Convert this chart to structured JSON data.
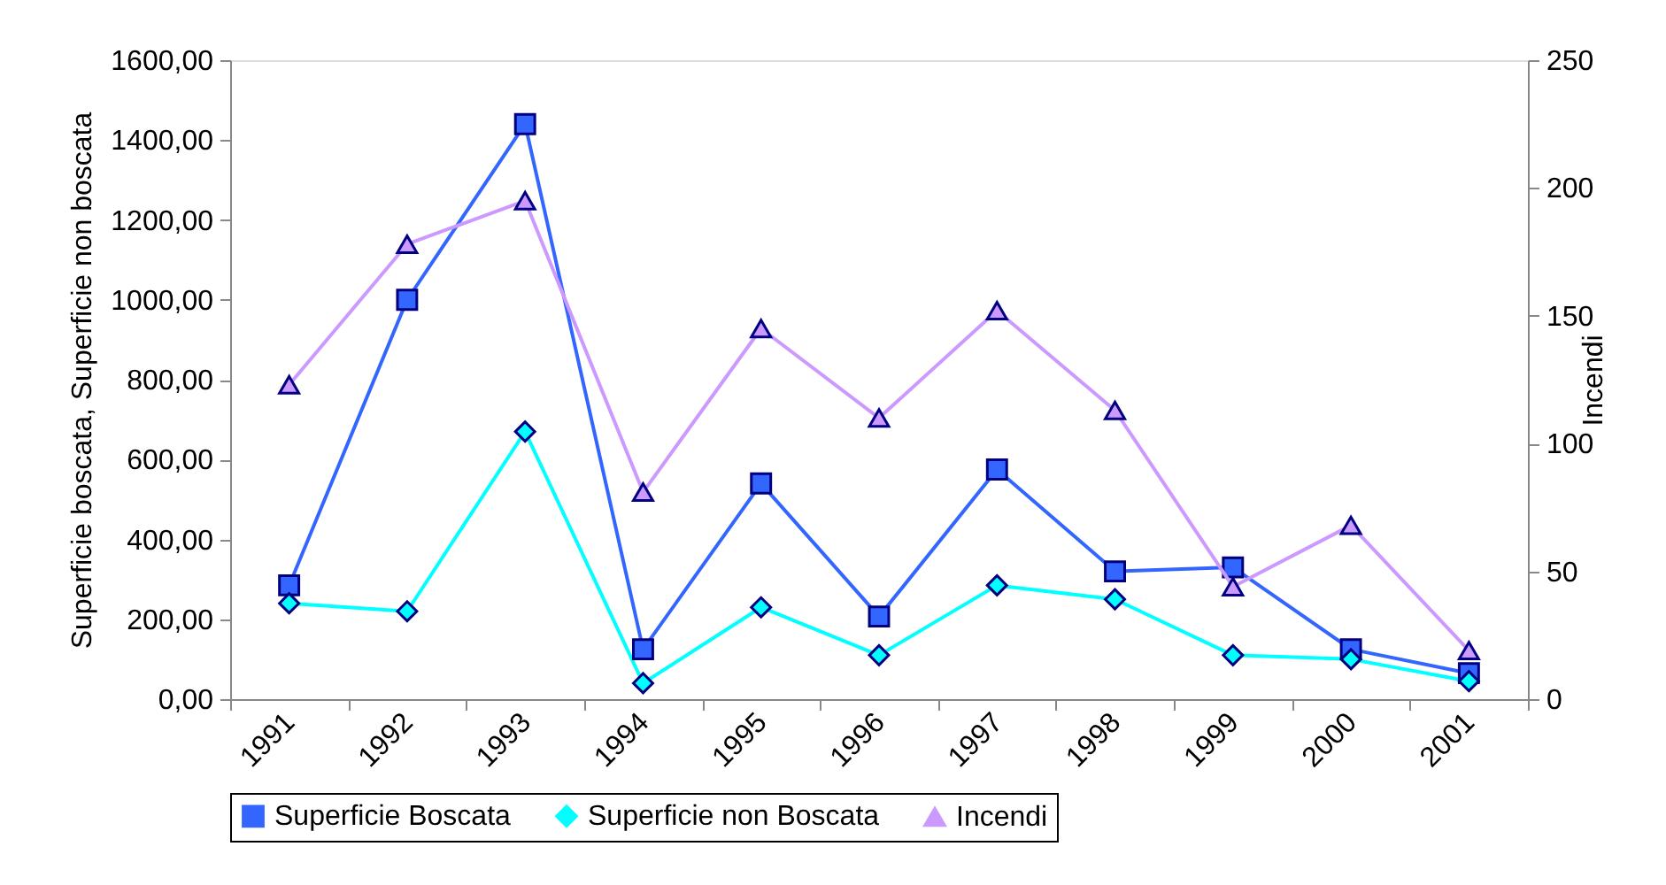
{
  "chart_data": {
    "type": "line",
    "categories": [
      "1991",
      "1992",
      "1993",
      "1994",
      "1995",
      "1996",
      "1997",
      "1998",
      "1999",
      "2000",
      "2001"
    ],
    "ylabel": "Superficie boscata, Superficie non boscata",
    "y2label": "Incendi",
    "ylim": [
      0,
      1600
    ],
    "yticks": [
      {
        "value": 0,
        "label": "0,00"
      },
      {
        "value": 200,
        "label": "200,00"
      },
      {
        "value": 400,
        "label": "400,00"
      },
      {
        "value": 600,
        "label": "600,00"
      },
      {
        "value": 800,
        "label": "800,00"
      },
      {
        "value": 1000,
        "label": "1000,00"
      },
      {
        "value": 1200,
        "label": "1200,00"
      },
      {
        "value": 1400,
        "label": "1400,00"
      },
      {
        "value": 1600,
        "label": "1600,00"
      }
    ],
    "y2lim": [
      0,
      250
    ],
    "y2ticks": [
      0,
      50,
      100,
      150,
      200,
      250
    ],
    "grid": false,
    "legend": "bottom",
    "line_style": "solid",
    "series": [
      {
        "name": "Superficie Boscata",
        "color": "#3366ff",
        "marker": "square",
        "values": [
          285,
          1000,
          1440,
          125,
          540,
          207,
          575,
          320,
          330,
          125,
          65
        ]
      },
      {
        "name": "Superficie non Boscata",
        "color": "#00ffff",
        "marker": "diamond",
        "values": [
          240,
          220,
          670,
          40,
          230,
          110,
          285,
          250,
          110,
          100,
          45
        ]
      },
      {
        "name": "Incendi",
        "color": "#cc99ff",
        "marker": "triangle",
        "axis": "y2",
        "values": [
          123,
          178,
          195,
          81,
          145,
          110,
          152,
          113,
          44,
          68,
          19
        ]
      }
    ]
  }
}
